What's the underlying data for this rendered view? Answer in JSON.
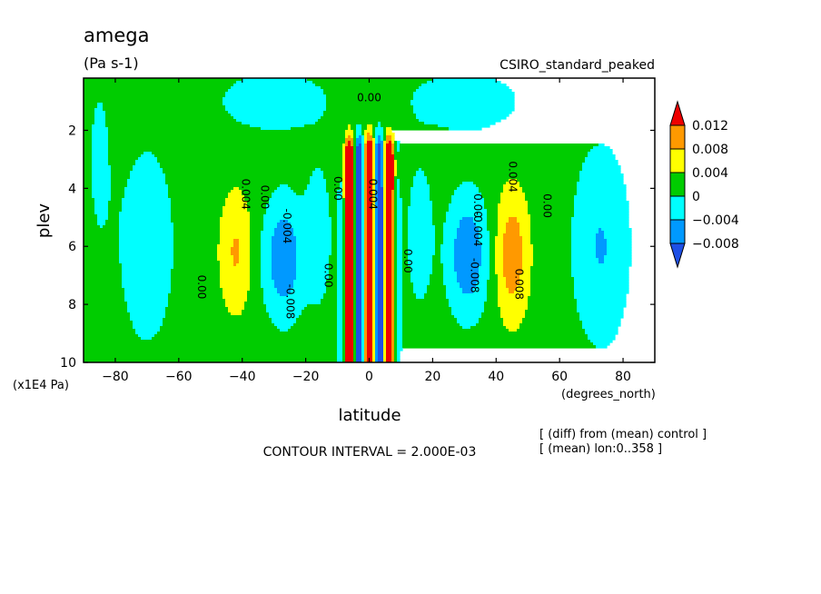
{
  "chart_data": {
    "type": "heatmap",
    "title": "amega",
    "units": "(Pa s-1)",
    "experiment": "CSIRO_standard_peaked",
    "xlabel": "latitude",
    "ylabel": "plev",
    "x_units": "(degrees_north)",
    "y_units": "(x1E4 Pa)",
    "xlim": [
      -90,
      90
    ],
    "ylim": [
      0.2,
      10
    ],
    "y_inverted": true,
    "x_ticks": [
      -80,
      -60,
      -40,
      -20,
      0,
      20,
      40,
      60,
      80
    ],
    "x_tick_labels": [
      "−80",
      "−60",
      "−40",
      "−20",
      "0",
      "20",
      "40",
      "60",
      "80"
    ],
    "y_ticks": [
      2,
      4,
      6,
      8,
      10
    ],
    "y_tick_labels": [
      "2",
      "4",
      "6",
      "8",
      "10"
    ],
    "contour_interval_text": "CONTOUR INTERVAL = 2.000E-03",
    "footnotes": [
      "[ (diff) from (mean) control ]",
      "[ (mean) lon:0..358 ]"
    ],
    "legend": {
      "levels": [
        "0.012",
        "0.008",
        "0.004",
        "0",
        "−0.004",
        "−0.008"
      ],
      "bands": [
        {
          "range": ">0.012",
          "color": "#ee0000"
        },
        {
          "range": "0.008 to 0.012",
          "color": "#ff9900"
        },
        {
          "range": "0.004 to 0.008",
          "color": "#ffff00"
        },
        {
          "range": "0 to 0.004",
          "color": "#00cc00"
        },
        {
          "range": "-0.004 to 0",
          "color": "#00ffff"
        },
        {
          "range": "-0.008 to -0.004",
          "color": "#0099ff"
        },
        {
          "range": "<-0.008",
          "color": "#1e50e6"
        }
      ]
    },
    "contour_labels": [
      {
        "text": "0.00",
        "lat": 0,
        "plev": 1.0
      },
      {
        "text": "0.004",
        "lat": -40,
        "plev": 4.2
      },
      {
        "text": "0.00",
        "lat": -34,
        "plev": 4.3
      },
      {
        "text": "-0.004",
        "lat": -27,
        "plev": 5.3
      },
      {
        "text": "-0.008",
        "lat": -26,
        "plev": 7.9
      },
      {
        "text": "0.00",
        "lat": -54,
        "plev": 7.4
      },
      {
        "text": "0.00",
        "lat": -14,
        "plev": 7.0
      },
      {
        "text": "0.00",
        "lat": -11,
        "plev": 4.0
      },
      {
        "text": "0.004",
        "lat": 0,
        "plev": 4.2
      },
      {
        "text": "0.00",
        "lat": 11,
        "plev": 6.5
      },
      {
        "text": "0.00",
        "lat": 33,
        "plev": 4.6
      },
      {
        "text": "-0.004",
        "lat": 33,
        "plev": 5.4
      },
      {
        "text": "-0.008",
        "lat": 32,
        "plev": 7.0
      },
      {
        "text": "0.004",
        "lat": 44,
        "plev": 3.6
      },
      {
        "text": "0.008",
        "lat": 46,
        "plev": 7.3
      },
      {
        "text": "0.00",
        "lat": 55,
        "plev": 4.6
      }
    ]
  }
}
